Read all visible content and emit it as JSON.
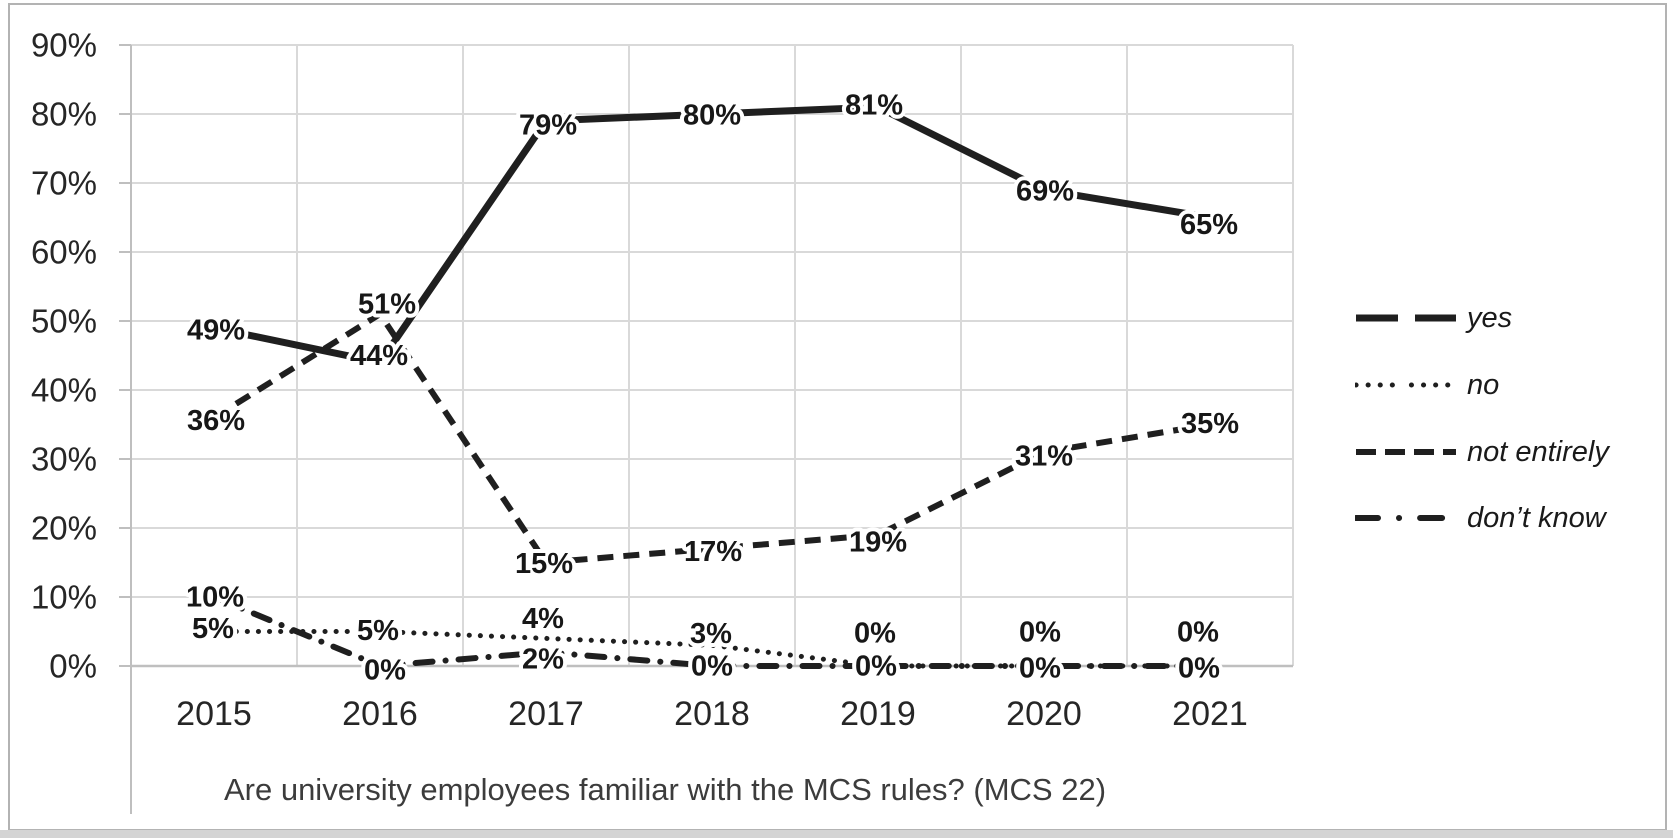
{
  "colors": {
    "line": "#1f1f1f",
    "gridline": "#d9d9d9",
    "axis": "#bfbfbf",
    "data_label": "#171717",
    "tick_text": "#262626",
    "title_text": "#3c3c3c"
  },
  "chart_data": {
    "type": "line",
    "title": "Are university employees familiar with the MCS rules? (MCS 22)",
    "categories": [
      "2015",
      "2016",
      "2017",
      "2018",
      "2019",
      "2020",
      "2021"
    ],
    "y_axis": {
      "min": 0,
      "max": 90,
      "step": 10,
      "tick_labels": [
        "90%",
        "80%",
        "70%",
        "60%",
        "50%",
        "40%",
        "30%",
        "20%",
        "10%",
        "0%"
      ]
    },
    "grid": true,
    "legend_position": "right-middle",
    "series": [
      {
        "name": "yes",
        "style": "solid",
        "values": [
          49,
          44,
          79,
          80,
          81,
          69,
          65
        ],
        "point_labels": [
          "49%",
          "44%",
          "79%",
          "80%",
          "81%",
          "69%",
          "65%"
        ],
        "label_offsets": [
          [
            2,
            1
          ],
          [
            -1,
            -8
          ],
          [
            2,
            3
          ],
          [
            0,
            0
          ],
          [
            -4,
            -3
          ],
          [
            1,
            0
          ],
          [
            -1,
            6
          ]
        ]
      },
      {
        "name": "no",
        "style": "dotted",
        "values": [
          5,
          5,
          4,
          3,
          0,
          0,
          0
        ],
        "point_labels": [
          "5%",
          "5%",
          "4%",
          "3%",
          "0%",
          "0%",
          "0%"
        ],
        "label_offsets": [
          [
            -1,
            -4
          ],
          [
            -2,
            -2
          ],
          [
            -3,
            -21
          ],
          [
            -1,
            -13
          ],
          [
            -3,
            -34
          ],
          [
            -4,
            -35
          ],
          [
            -12,
            -35
          ]
        ]
      },
      {
        "name": "not entirely",
        "style": "dashed",
        "values": [
          36,
          51,
          15,
          17,
          19,
          31,
          35
        ],
        "point_labels": [
          "36%",
          "51%",
          "15%",
          "17%",
          "19%",
          "31%",
          "35%"
        ],
        "label_offsets": [
          [
            2,
            2
          ],
          [
            7,
            -11
          ],
          [
            -2,
            0
          ],
          [
            1,
            2
          ],
          [
            0,
            6
          ],
          [
            0,
            3
          ],
          [
            0,
            -2
          ]
        ]
      },
      {
        "name": "don’t know",
        "style": "dashdot",
        "values": [
          10,
          0,
          2,
          0,
          0,
          0,
          0
        ],
        "point_labels": [
          "10%",
          "0%",
          "2%",
          "0%",
          "0%",
          "0%",
          "0%"
        ],
        "label_offsets": [
          [
            1,
            -1
          ],
          [
            5,
            3
          ],
          [
            -3,
            6
          ],
          [
            0,
            -1
          ],
          [
            -2,
            -1
          ],
          [
            -4,
            1
          ],
          [
            -11,
            1
          ]
        ]
      }
    ]
  }
}
